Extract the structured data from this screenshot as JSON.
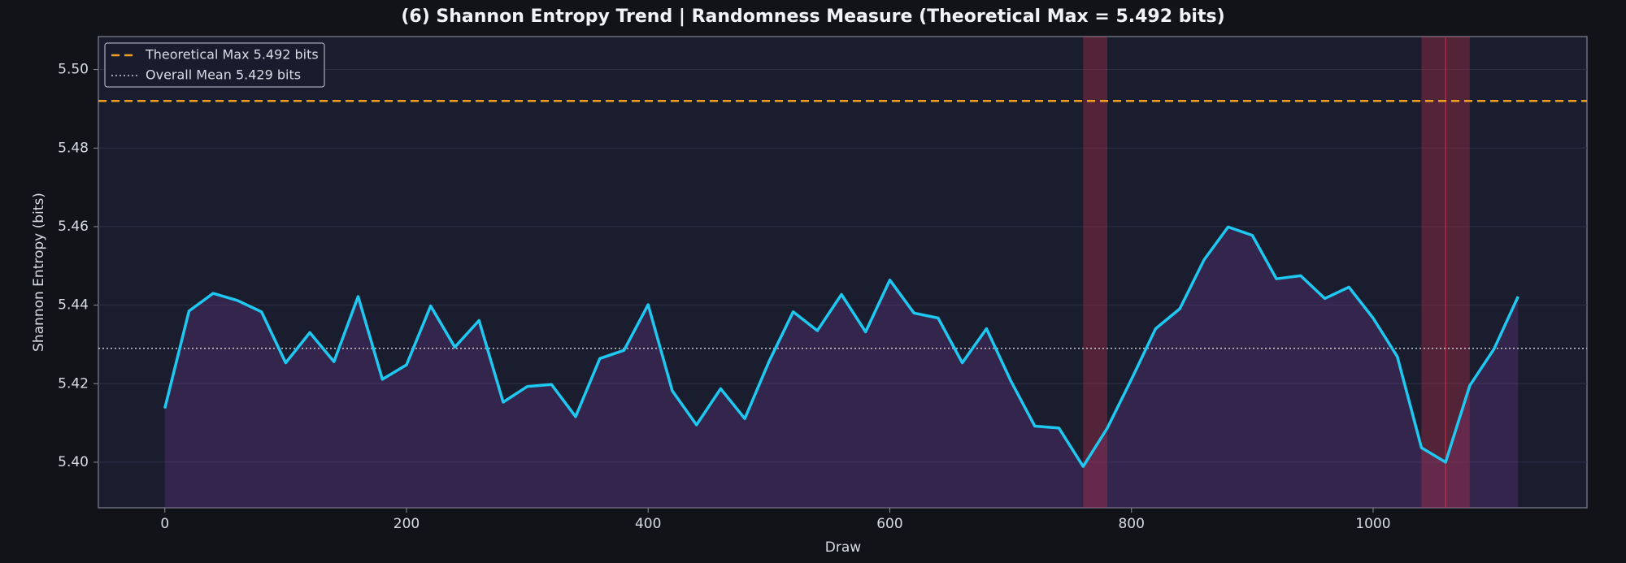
{
  "chart_data": {
    "type": "line",
    "title": "(6) Shannon Entropy Trend  |  Randomness Measure (Theoretical Max = 5.492 bits)",
    "x_label": "Draw",
    "y_label": "Shannon Entropy (bits)",
    "x": [
      0,
      20,
      40,
      60,
      80,
      100,
      120,
      140,
      160,
      180,
      200,
      220,
      240,
      260,
      280,
      300,
      320,
      340,
      360,
      380,
      400,
      420,
      440,
      460,
      480,
      500,
      520,
      540,
      560,
      580,
      600,
      620,
      640,
      660,
      680,
      700,
      720,
      740,
      760,
      780,
      800,
      820,
      840,
      860,
      880,
      900,
      920,
      940,
      960,
      980,
      1000,
      1020,
      1040,
      1060,
      1080,
      1100,
      1120
    ],
    "series": [
      {
        "name": "Shannon Entropy",
        "color": "#1ec8f0",
        "fill": "#7a3c9c",
        "values": [
          5.4137,
          5.4385,
          5.443,
          5.4412,
          5.4383,
          5.4253,
          5.433,
          5.4256,
          5.4422,
          5.4211,
          5.4248,
          5.4398,
          5.4293,
          5.4361,
          5.4153,
          5.4193,
          5.4198,
          5.4116,
          5.4264,
          5.4285,
          5.4401,
          5.4182,
          5.4095,
          5.4187,
          5.4111,
          5.4256,
          5.4383,
          5.4335,
          5.4427,
          5.4332,
          5.4464,
          5.438,
          5.4367,
          5.4253,
          5.434,
          5.4208,
          5.4092,
          5.4087,
          5.3989,
          5.4087,
          5.4211,
          5.434,
          5.4391,
          5.4515,
          5.4599,
          5.4578,
          5.4467,
          5.4475,
          5.4417,
          5.4446,
          5.4367,
          5.4269,
          5.4037,
          5.4,
          5.4195,
          5.4288,
          5.4422
        ]
      }
    ],
    "hlines": [
      {
        "name": "Theoretical Max 5.492 bits",
        "value": 5.492,
        "color": "#f0a020",
        "dash": "10 6"
      },
      {
        "name": "Overall Mean 5.429 bits",
        "value": 5.429,
        "color": "#c8cad2",
        "dash": "2 3"
      }
    ],
    "spans": [
      [
        760,
        780
      ],
      [
        1040,
        1080
      ]
    ],
    "span_color": "#c0304a",
    "vlines": [
      1060
    ],
    "xlim": [
      -55,
      1177
    ],
    "ylim": [
      5.3884,
      5.5084
    ],
    "xticks": [
      0,
      200,
      400,
      600,
      800,
      1000
    ],
    "yticks": [
      {
        "value": 5.4,
        "label": "5.40"
      },
      {
        "value": 5.42,
        "label": "5.42"
      },
      {
        "value": 5.44,
        "label": "5.44"
      },
      {
        "value": 5.46,
        "label": "5.46"
      },
      {
        "value": 5.48,
        "label": "5.48"
      },
      {
        "value": 5.5,
        "label": "5.50"
      }
    ],
    "grid": true,
    "legend": "upper left"
  }
}
